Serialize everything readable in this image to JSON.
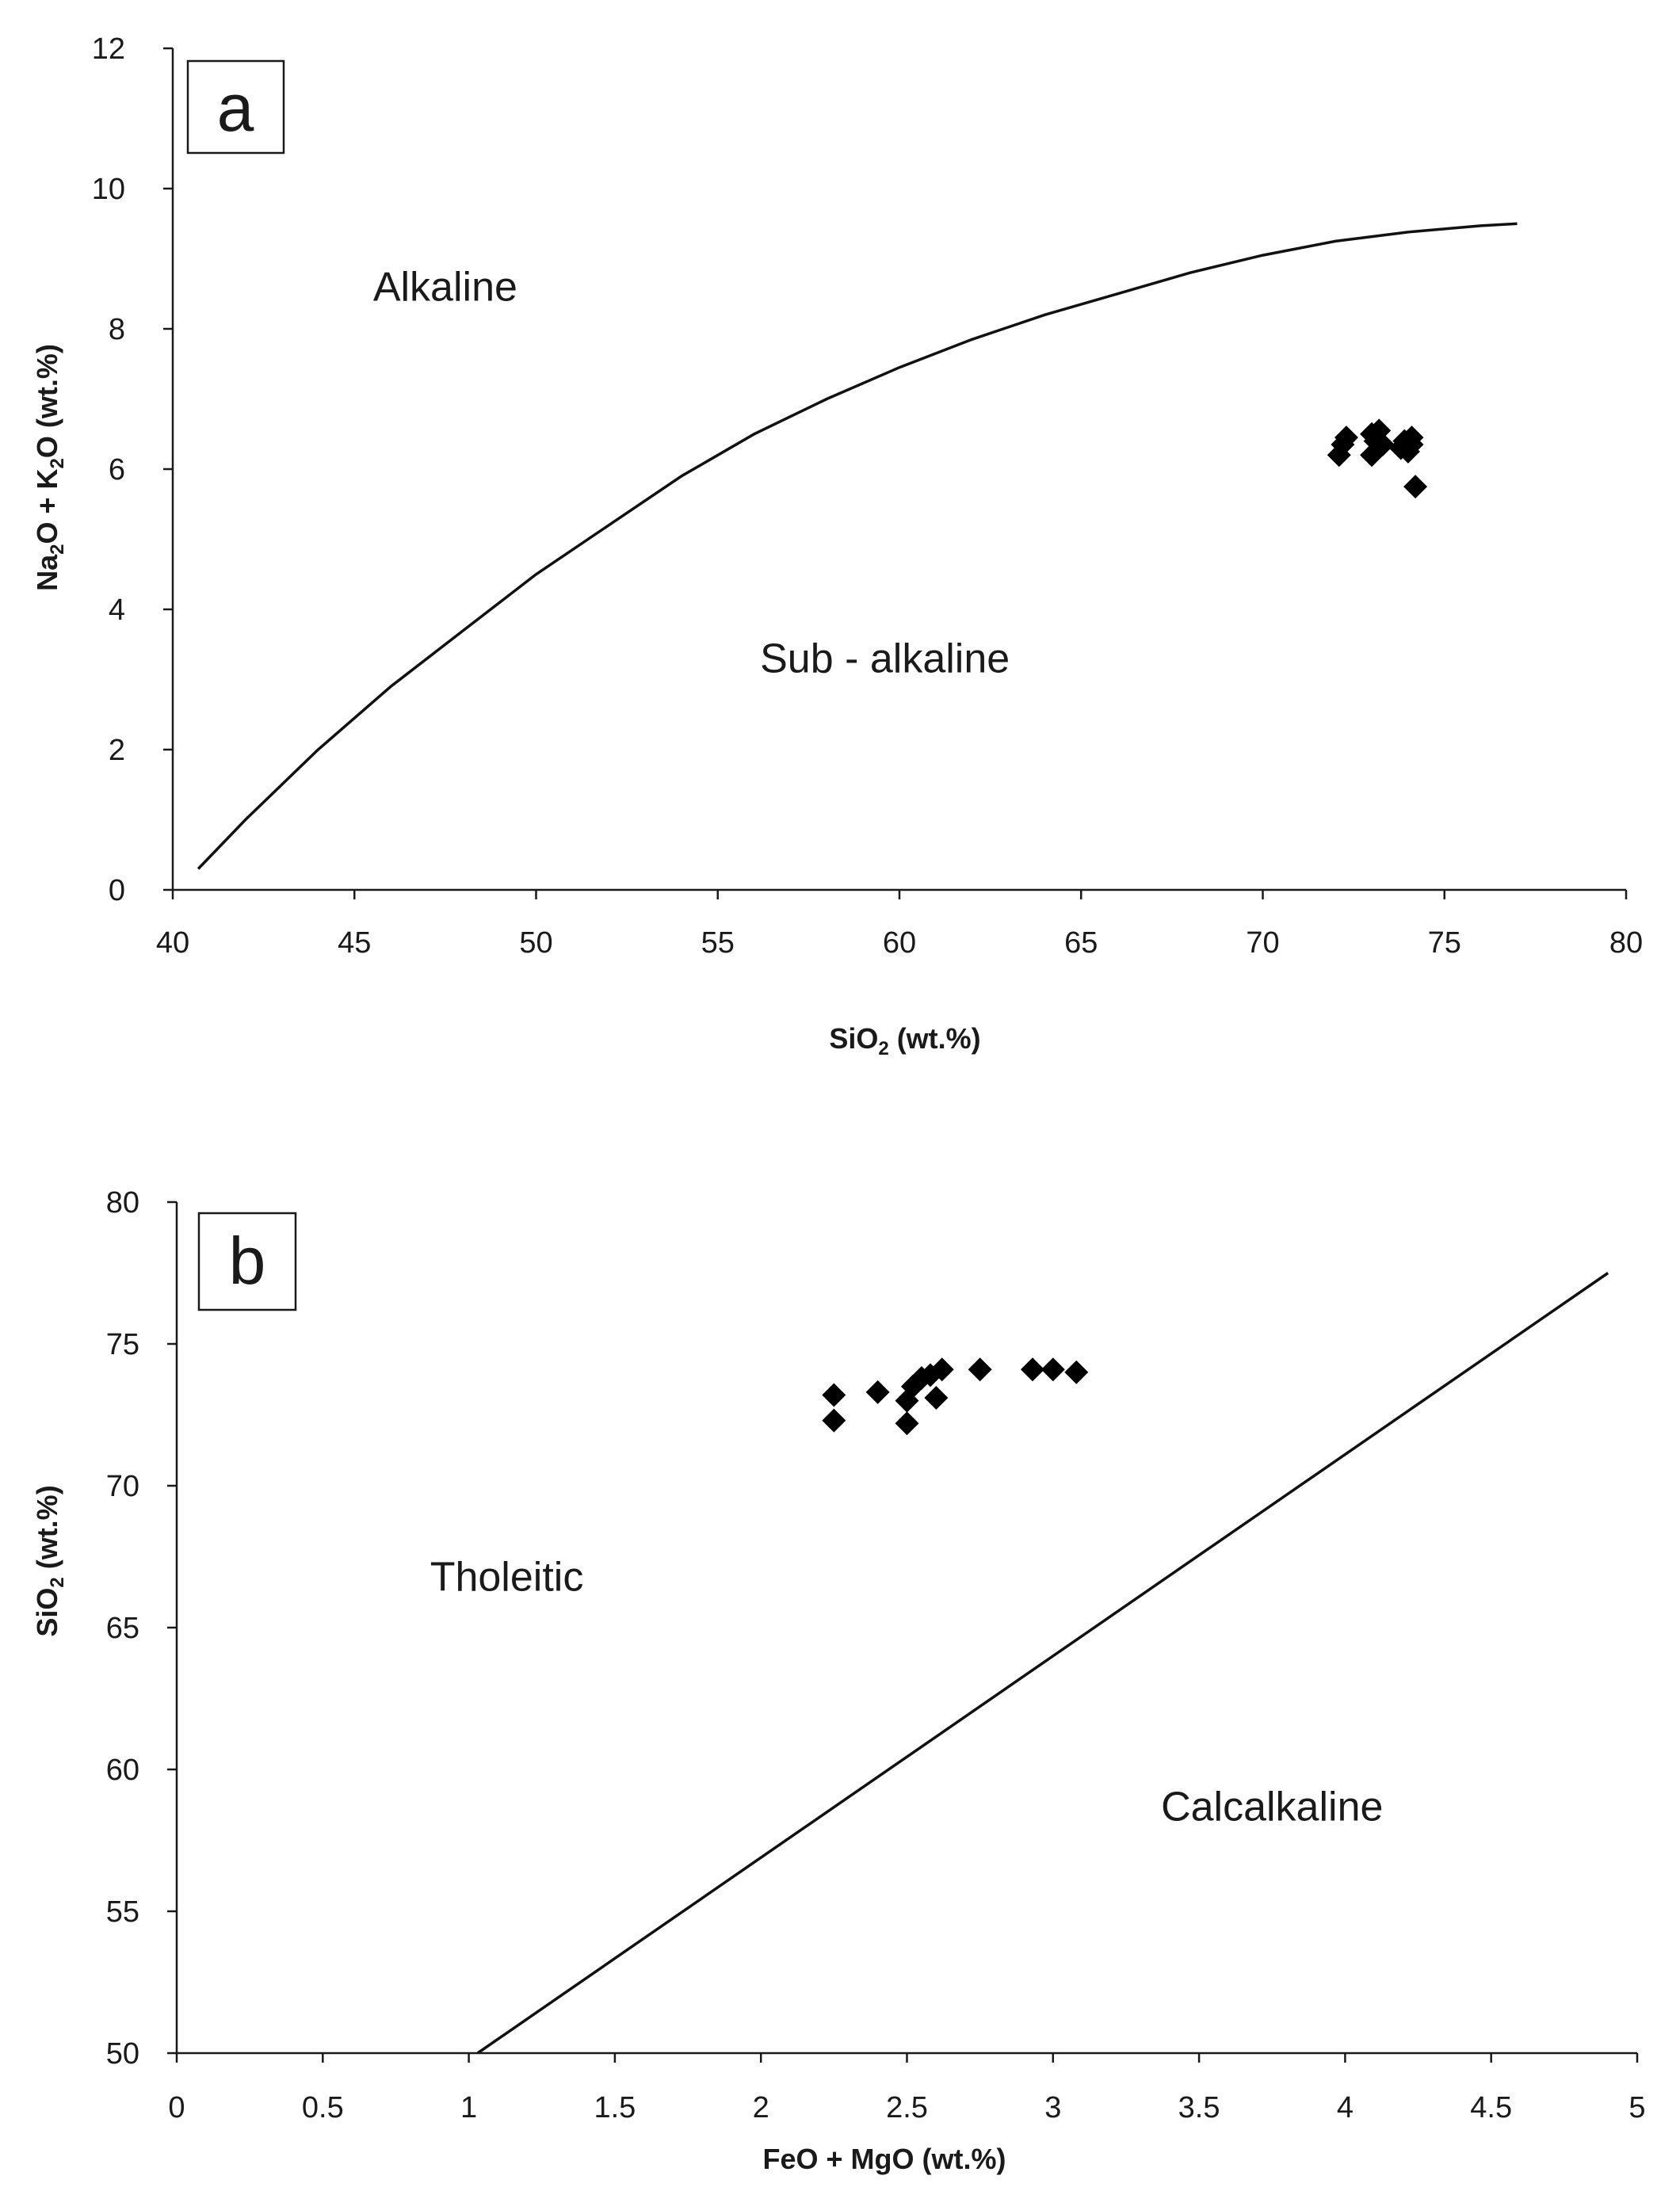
{
  "chart_data": [
    {
      "type": "scatter",
      "panel_label": "a",
      "title": "",
      "xlabel": {
        "main": "SiO",
        "sub": "2",
        "tail": " (wt.%)"
      },
      "ylabel": {
        "parts": [
          "Na",
          "2",
          "O + K",
          "2",
          "O (wt.%)"
        ]
      },
      "xlim": [
        40,
        80
      ],
      "ylim": [
        0,
        12
      ],
      "x_ticks": [
        40,
        45,
        50,
        55,
        60,
        65,
        70,
        75,
        80
      ],
      "y_ticks": [
        0,
        2,
        4,
        6,
        8,
        10,
        12
      ],
      "grid": false,
      "regions": [
        {
          "label": "Alkaline",
          "x": 47.5,
          "y": 8.4
        },
        {
          "label": "Sub - alkaline",
          "x": 59.6,
          "y": 3.1
        }
      ],
      "boundary_line": {
        "x": [
          40.7,
          42,
          44,
          46,
          48,
          50,
          52,
          54,
          56,
          58,
          60,
          62,
          64,
          66,
          68,
          70,
          72,
          74,
          76,
          77
        ],
        "y": [
          0.3,
          1.0,
          2.0,
          2.9,
          3.7,
          4.5,
          5.2,
          5.9,
          6.5,
          7.0,
          7.45,
          7.85,
          8.2,
          8.5,
          8.8,
          9.05,
          9.25,
          9.38,
          9.47,
          9.5
        ]
      },
      "series": [
        {
          "marker": "diamond",
          "color": "#000000",
          "x": [
            72.1,
            72.2,
            72.3,
            73.0,
            73.1,
            73.2,
            73.3,
            73.8,
            73.9,
            74.0,
            74.1,
            74.1,
            73.0,
            74.2
          ],
          "y": [
            6.2,
            6.35,
            6.45,
            6.2,
            6.4,
            6.55,
            6.35,
            6.3,
            6.4,
            6.25,
            6.45,
            6.35,
            6.5,
            5.75
          ]
        }
      ]
    },
    {
      "type": "scatter",
      "panel_label": "b",
      "title": "",
      "xlabel": {
        "main": "FeO + MgO (wt.%)"
      },
      "ylabel": {
        "parts": [
          "SiO",
          "2",
          " (wt.%)"
        ]
      },
      "xlim": [
        0,
        5
      ],
      "ylim": [
        50,
        80
      ],
      "x_ticks": [
        0,
        0.5,
        1,
        1.5,
        2,
        2.5,
        3,
        3.5,
        4,
        4.5,
        5
      ],
      "y_ticks": [
        50,
        55,
        60,
        65,
        70,
        75,
        80
      ],
      "grid": false,
      "regions": [
        {
          "label": "Tholeitic",
          "x": 1.13,
          "y": 66.3
        },
        {
          "label": "Calcalkaline",
          "x": 3.75,
          "y": 58.2
        }
      ],
      "boundary_line": {
        "x": [
          1.03,
          4.9
        ],
        "y": [
          50.0,
          77.5
        ]
      },
      "series": [
        {
          "marker": "diamond",
          "color": "#000000",
          "x": [
            2.25,
            2.25,
            2.4,
            2.5,
            2.5,
            2.52,
            2.55,
            2.58,
            2.6,
            2.62,
            2.75,
            2.93,
            3.0,
            3.08
          ],
          "y": [
            73.2,
            72.3,
            73.3,
            72.2,
            73.0,
            73.5,
            73.8,
            73.9,
            73.1,
            74.1,
            74.1,
            74.1,
            74.1,
            74.0
          ]
        }
      ]
    }
  ]
}
